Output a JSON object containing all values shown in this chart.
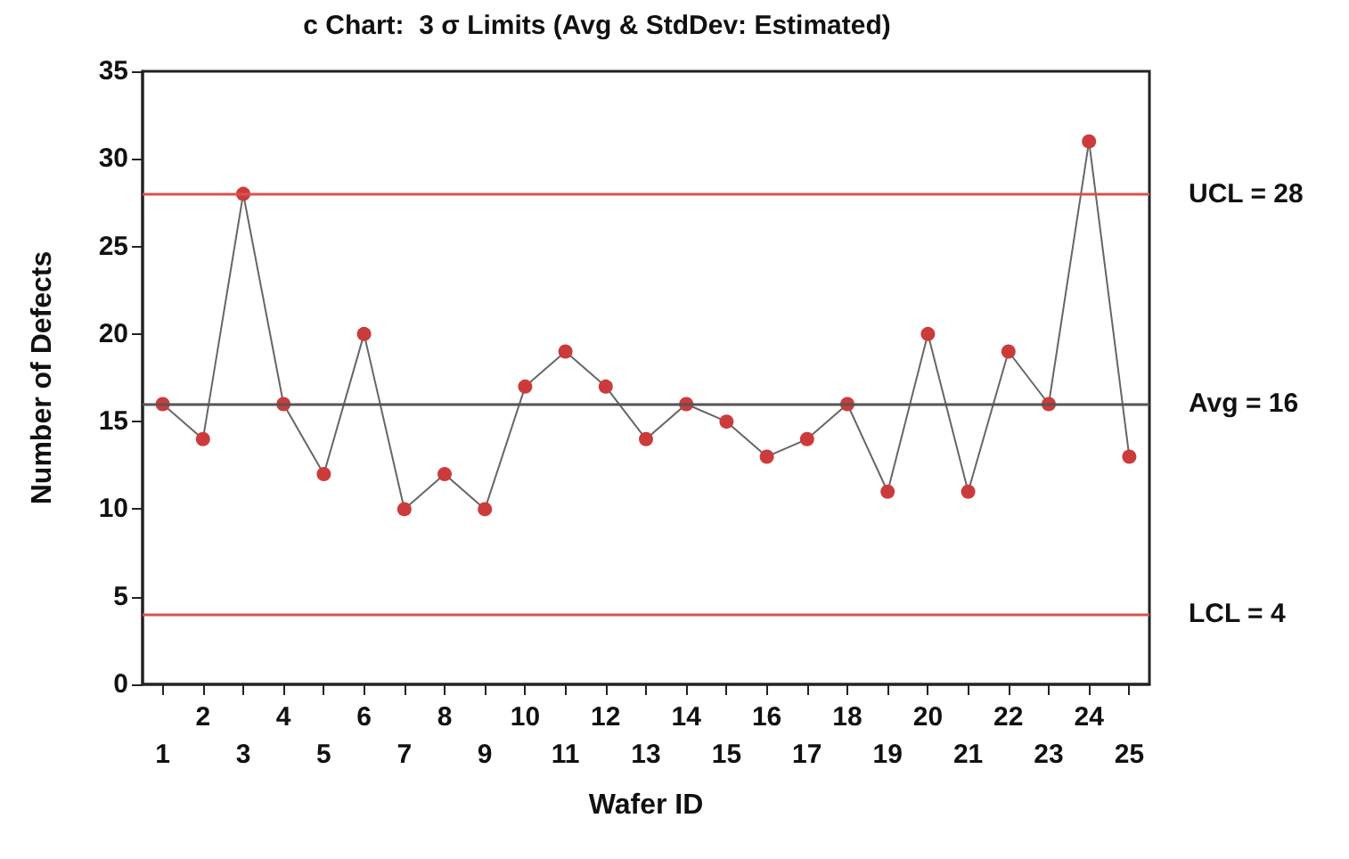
{
  "chart_data": {
    "type": "line",
    "title": "c Chart:  3 σ Limits (Avg & StdDev: Estimated)",
    "xlabel": "Wafer ID",
    "ylabel": "Number of Defects",
    "categories": [
      "1",
      "2",
      "3",
      "4",
      "5",
      "6",
      "7",
      "8",
      "9",
      "10",
      "11",
      "12",
      "13",
      "14",
      "15",
      "16",
      "17",
      "18",
      "19",
      "20",
      "21",
      "22",
      "23",
      "24",
      "25"
    ],
    "series": [
      {
        "color": "#cc3b3b",
        "values": [
          16,
          14,
          28,
          16,
          12,
          20,
          10,
          12,
          10,
          17,
          19,
          17,
          14,
          16,
          15,
          13,
          14,
          16,
          11,
          20,
          11,
          19,
          16,
          31,
          13
        ]
      }
    ],
    "ylim": [
      0,
      35
    ],
    "yticks": [
      0,
      5,
      10,
      15,
      20,
      25,
      30,
      35
    ],
    "ref_lines": [
      {
        "axis": "y",
        "value": 28,
        "label": "UCL = 28",
        "color": "#d9534f"
      },
      {
        "axis": "y",
        "value": 16,
        "label": "Avg = 16",
        "color": "#555555"
      },
      {
        "axis": "y",
        "value": 4,
        "label": "LCL = 4",
        "color": "#d9534f"
      }
    ],
    "marker": "circle",
    "line_style": "solid",
    "grid": false
  }
}
